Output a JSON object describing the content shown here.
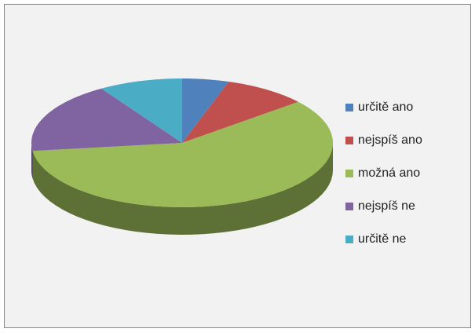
{
  "chart_data": {
    "type": "pie",
    "legend": "right",
    "categories": [
      "určitě ano",
      "nejspíš ano",
      "možná ano",
      "nejspíš ne",
      "určitě ne"
    ],
    "values": [
      5,
      9,
      59,
      18,
      9
    ],
    "colors": [
      "#4f81bd",
      "#c0504d",
      "#9bbb59",
      "#8064a2",
      "#4bacc6"
    ]
  }
}
